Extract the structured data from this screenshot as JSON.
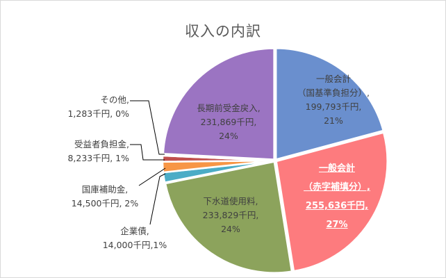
{
  "chart_data": {
    "type": "pie",
    "title": "収入の内訳",
    "unit": "千円",
    "start_angle_deg": 0,
    "direction": "clockwise",
    "slices": [
      {
        "name": "一般会計（国基準負担分）",
        "value": 199793,
        "percent": "21%",
        "color": "#6a8fce",
        "label_lines": [
          "一般会計",
          "（国基準負担分）,",
          "199,793千円,",
          "21%"
        ]
      },
      {
        "name": "一般会計（赤字補填分）",
        "value": 255636,
        "percent": "27%",
        "color": "#fd7b7e",
        "highlight": true,
        "label_lines": [
          "一般会計",
          "（赤字補填分）,",
          "255,636千円,",
          "27%"
        ]
      },
      {
        "name": "下水道使用料",
        "value": 233829,
        "percent": "24%",
        "color": "#8ca35c",
        "label_lines": [
          "下水道使用料,",
          "233,829千円,",
          "24%"
        ]
      },
      {
        "name": "企業債",
        "value": 14000,
        "percent": "1%",
        "color": "#4bacc6",
        "label_lines": [
          "企業債,",
          "14,000千円,1%"
        ]
      },
      {
        "name": "国庫補助金",
        "value": 14500,
        "percent": "2%",
        "color": "#f79646",
        "label_lines": [
          "国庫補助金,",
          "14,500千円, 2%"
        ]
      },
      {
        "name": "受益者負担金",
        "value": 8233,
        "percent": "1%",
        "color": "#c0504d",
        "label_lines": [
          "受益者負担金,",
          "8,233千円, 1%"
        ]
      },
      {
        "name": "その他",
        "value": 1283,
        "percent": "0%",
        "color": "#e0e0e0",
        "label_lines": [
          "その他,",
          "1,283千円, 0%"
        ]
      },
      {
        "name": "長期前受金戻入",
        "value": 231869,
        "percent": "24%",
        "color": "#9b74c2",
        "label_lines": [
          "長期前受金戻入,",
          "231,869千円,",
          "24%"
        ]
      }
    ],
    "legend": "none"
  }
}
